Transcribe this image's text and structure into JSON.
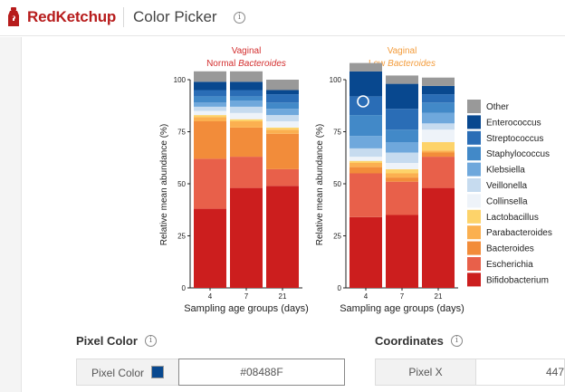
{
  "header": {
    "brand": "RedKetchup",
    "app_title": "Color Picker",
    "info_glyph": "i",
    "brand_color": "#b71c1c"
  },
  "figure": {
    "panels": [
      {
        "title_line1": "Vaginal",
        "title_line2_prefix": "Normal ",
        "title_line2_italic": "Bacteroides",
        "title_color": "#d32f2f"
      },
      {
        "title_line1": "Vaginal",
        "title_line2_prefix": "Low ",
        "title_line2_italic": "Bacteroides",
        "title_color": "#f39c3c"
      }
    ],
    "ylabel": "Relative mean abundance (%)",
    "xlabel": "Sampling age groups (days)",
    "yticks": [
      "0",
      "25",
      "50",
      "75",
      "100"
    ],
    "categories": [
      "4",
      "7",
      "21"
    ]
  },
  "chart_data": {
    "type": "bar",
    "stacked": true,
    "ylim": [
      0,
      100
    ],
    "ylabel": "Relative mean abundance (%)",
    "xlabel": "Sampling age groups (days)",
    "categories": [
      "4",
      "7",
      "21"
    ],
    "legend": [
      {
        "name": "Other",
        "color": "#999999"
      },
      {
        "name": "Enterococcus",
        "color": "#08488F"
      },
      {
        "name": "Streptococcus",
        "color": "#2a6db6"
      },
      {
        "name": "Staphylococcus",
        "color": "#4289c8"
      },
      {
        "name": "Klebsiella",
        "color": "#6fa8dc"
      },
      {
        "name": "Veillonella",
        "color": "#c6dbef"
      },
      {
        "name": "Collinsella",
        "color": "#eef3f9"
      },
      {
        "name": "Lactobacillus",
        "color": "#fdd36a"
      },
      {
        "name": "Parabacteroides",
        "color": "#fbb050"
      },
      {
        "name": "Bacteroides",
        "color": "#f28c3a"
      },
      {
        "name": "Escherichia",
        "color": "#e8604a"
      },
      {
        "name": "Bifidobacterium",
        "color": "#cc1e1e"
      }
    ],
    "series_order": [
      "Bifidobacterium",
      "Escherichia",
      "Bacteroides",
      "Parabacteroides",
      "Lactobacillus",
      "Collinsella",
      "Veillonella",
      "Klebsiella",
      "Staphylococcus",
      "Streptococcus",
      "Enterococcus",
      "Other"
    ],
    "panels": [
      {
        "title": "Vaginal Normal Bacteroides",
        "stacks": [
          [
            38,
            24,
            18,
            2,
            1,
            2,
            2,
            2,
            3,
            3,
            4,
            5
          ],
          [
            48,
            15,
            14,
            3,
            1,
            3,
            3,
            3,
            2,
            3,
            4,
            5
          ],
          [
            49,
            8,
            17,
            2,
            1,
            3,
            3,
            3,
            3,
            4,
            2,
            5
          ]
        ]
      },
      {
        "title": "Vaginal Low Bacteroides",
        "stacks": [
          [
            34,
            21,
            3,
            2,
            1,
            2,
            4,
            6,
            10,
            9,
            12,
            4
          ],
          [
            35,
            16,
            2,
            2,
            2,
            3,
            5,
            5,
            6,
            10,
            12,
            4
          ],
          [
            48,
            15,
            2,
            1,
            4,
            6,
            3,
            5,
            5,
            4,
            4,
            4
          ]
        ]
      }
    ]
  },
  "pixel_color": {
    "section_title": "Pixel Color",
    "label": "Pixel Color",
    "value": "#08488F",
    "swatch_color": "#08488F"
  },
  "coordinates": {
    "section_title": "Coordinates",
    "pixel_x_label": "Pixel X",
    "pixel_x_value": "447"
  }
}
